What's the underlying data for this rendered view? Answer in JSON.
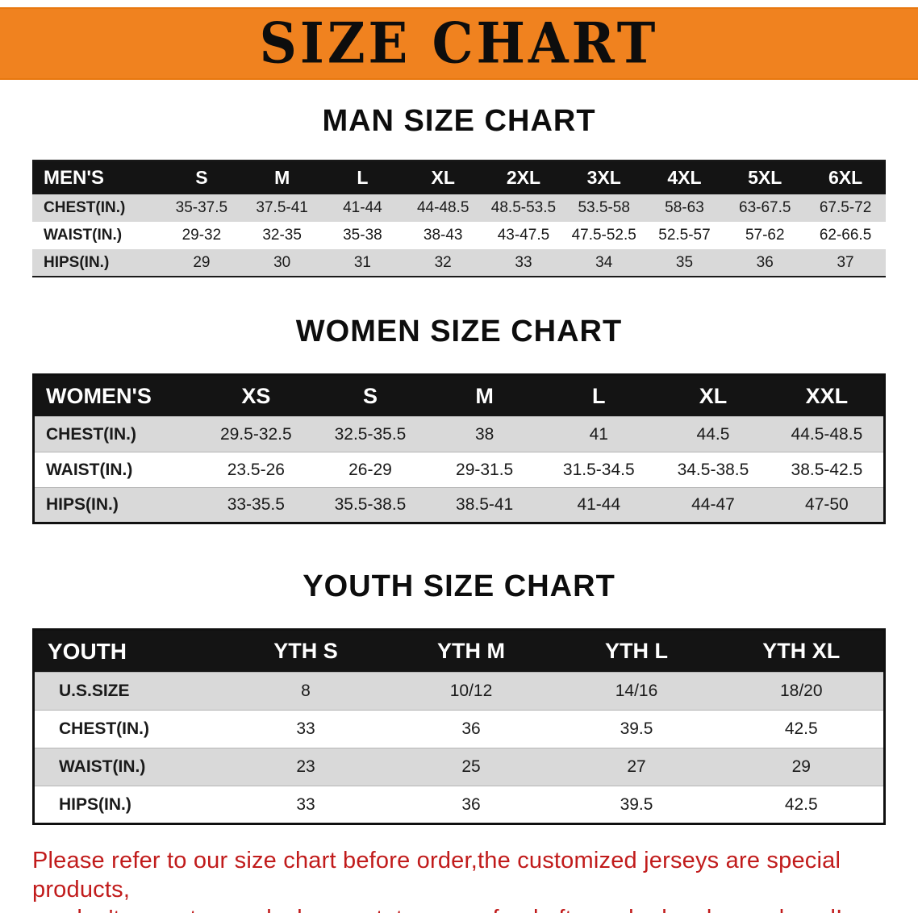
{
  "banner": {
    "title": "SIZE CHART",
    "bg_color": "#f0821f"
  },
  "sections": [
    {
      "heading": "MAN SIZE CHART",
      "table": {
        "header": [
          "MEN'S",
          "S",
          "M",
          "L",
          "XL",
          "2XL",
          "3XL",
          "4XL",
          "5XL",
          "6XL"
        ],
        "rows": [
          [
            "CHEST(IN.)",
            "35-37.5",
            "37.5-41",
            "41-44",
            "44-48.5",
            "48.5-53.5",
            "53.5-58",
            "58-63",
            "63-67.5",
            "67.5-72"
          ],
          [
            "WAIST(IN.)",
            "29-32",
            "32-35",
            "35-38",
            "38-43",
            "43-47.5",
            "47.5-52.5",
            "52.5-57",
            "57-62",
            "62-66.5"
          ],
          [
            "HIPS(IN.)",
            "29",
            "30",
            "31",
            "32",
            "33",
            "34",
            "35",
            "36",
            "37"
          ]
        ]
      }
    },
    {
      "heading": "WOMEN SIZE CHART",
      "table": {
        "header": [
          "WOMEN'S",
          "XS",
          "S",
          "M",
          "L",
          "XL",
          "XXL"
        ],
        "rows": [
          [
            "CHEST(IN.)",
            "29.5-32.5",
            "32.5-35.5",
            "38",
            "41",
            "44.5",
            "44.5-48.5"
          ],
          [
            "WAIST(IN.)",
            "23.5-26",
            "26-29",
            "29-31.5",
            "31.5-34.5",
            "34.5-38.5",
            "38.5-42.5"
          ],
          [
            "HIPS(IN.)",
            "33-35.5",
            "35.5-38.5",
            "38.5-41",
            "41-44",
            "44-47",
            "47-50"
          ]
        ]
      }
    },
    {
      "heading": "YOUTH SIZE CHART",
      "table": {
        "header": [
          "YOUTH",
          "YTH S",
          "YTH M",
          "YTH L",
          "YTH XL"
        ],
        "rows": [
          [
            "U.S.SIZE",
            "8",
            "10/12",
            "14/16",
            "18/20"
          ],
          [
            "CHEST(IN.)",
            "33",
            "36",
            "39.5",
            "42.5"
          ],
          [
            "WAIST(IN.)",
            "23",
            "25",
            "27",
            "29"
          ],
          [
            "HIPS(IN.)",
            "33",
            "36",
            "39.5",
            "42.5"
          ]
        ]
      }
    }
  ],
  "disclaimer": {
    "line1": "Please refer to our size chart before order,the customized jerseys are special products,",
    "line2": "we don't accept cancel, change, teturn or refund after order has been placed!",
    "color": "#c11b1b"
  }
}
